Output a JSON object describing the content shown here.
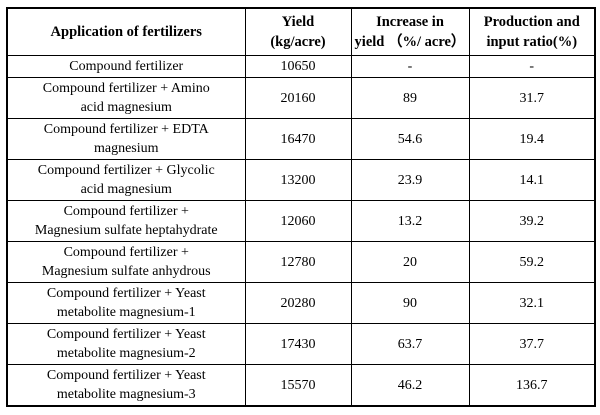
{
  "page": {
    "background": "#ffffff"
  },
  "colors": {
    "border": "#000000",
    "text": "#000000"
  },
  "table": {
    "headers": {
      "application": "Application of fertilizers",
      "yield": "Yield\n(kg/acre)",
      "increase": "Increase in\nyield （%/ acre）",
      "ratio": "Production and\ninput ratio(%)"
    },
    "rows": [
      {
        "application": "Compound fertilizer",
        "yield": "10650",
        "increase": "-",
        "ratio": "-"
      },
      {
        "application": "Compound fertilizer + Amino\nacid magnesium",
        "yield": "20160",
        "increase": "89",
        "ratio": "31.7"
      },
      {
        "application": "Compound fertilizer + EDTA\nmagnesium",
        "yield": "16470",
        "increase": "54.6",
        "ratio": "19.4"
      },
      {
        "application": "Compound fertilizer + Glycolic\nacid magnesium",
        "yield": "13200",
        "increase": "23.9",
        "ratio": "14.1"
      },
      {
        "application": "Compound fertilizer +\nMagnesium sulfate heptahydrate",
        "yield": "12060",
        "increase": "13.2",
        "ratio": "39.2"
      },
      {
        "application": "Compound fertilizer +\nMagnesium sulfate anhydrous",
        "yield": "12780",
        "increase": "20",
        "ratio": "59.2"
      },
      {
        "application": "Compound fertilizer + Yeast\nmetabolite magnesium-1",
        "yield": "20280",
        "increase": "90",
        "ratio": "32.1"
      },
      {
        "application": "Compound fertilizer + Yeast\nmetabolite magnesium-2",
        "yield": "17430",
        "increase": "63.7",
        "ratio": "37.7"
      },
      {
        "application": "Compound fertilizer + Yeast\nmetabolite magnesium-3",
        "yield": "15570",
        "increase": "46.2",
        "ratio": "136.7"
      }
    ]
  }
}
